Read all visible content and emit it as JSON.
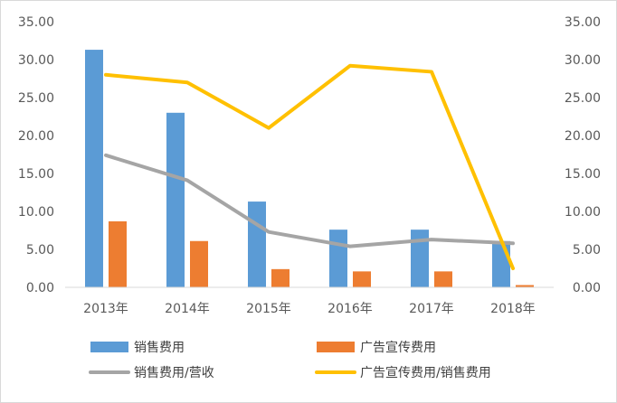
{
  "chart_data": {
    "type": "bar",
    "categories": [
      "2013年",
      "2014年",
      "2015年",
      "2016年",
      "2017年",
      "2018年"
    ],
    "bar_series": [
      {
        "name": "销售费用",
        "values": [
          31.3,
          23.0,
          11.3,
          7.6,
          7.6,
          6.1
        ],
        "color": "#5b9bd5"
      },
      {
        "name": "广告宣传费用",
        "values": [
          8.7,
          6.1,
          2.4,
          2.1,
          2.1,
          0.3
        ],
        "color": "#ed7d31"
      }
    ],
    "line_series": [
      {
        "name": "销售费用/营收",
        "values": [
          17.4,
          14.1,
          7.3,
          5.4,
          6.3,
          5.8
        ],
        "color": "#a5a5a5",
        "axis": "left"
      },
      {
        "name": "广告宣传费用/销售费用",
        "values": [
          28.0,
          27.0,
          21.0,
          29.2,
          28.4,
          2.5
        ],
        "color": "#ffc000",
        "axis": "right"
      }
    ],
    "y_left": {
      "ylim": [
        0,
        35
      ],
      "ticks": [
        "0.00",
        "5.00",
        "10.00",
        "15.00",
        "20.00",
        "25.00",
        "30.00",
        "35.00"
      ]
    },
    "y_right": {
      "ylim": [
        0,
        35
      ],
      "ticks": [
        "0.00",
        "5.00",
        "10.00",
        "15.00",
        "20.00",
        "25.00",
        "30.00",
        "35.00"
      ]
    },
    "grid": false,
    "legend_position": "bottom"
  }
}
